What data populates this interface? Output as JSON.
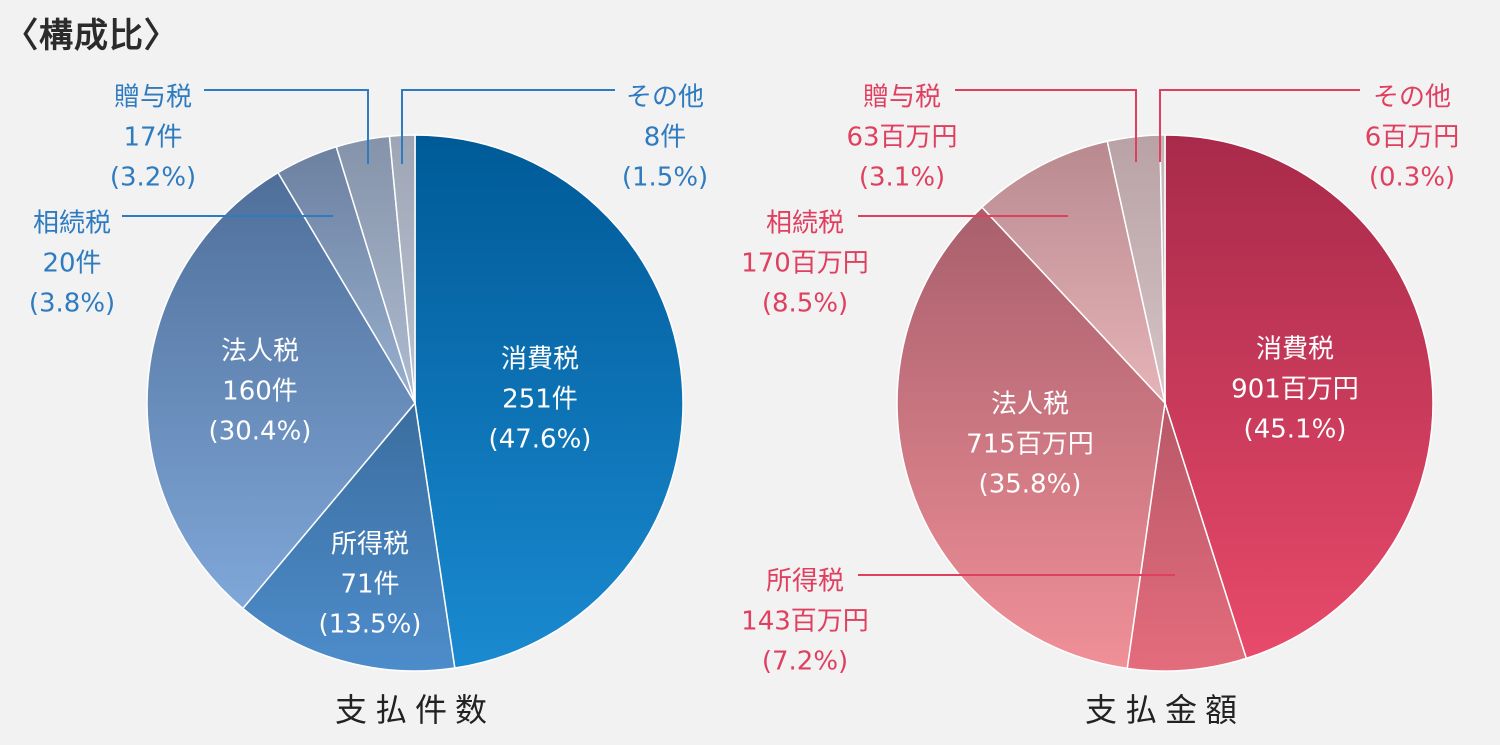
{
  "page_title": "〈構成比〉",
  "colors": {
    "count_label": "#2e7bc0",
    "count_line": "#2e7bc0",
    "amount_label": "#e0405f",
    "amount_line": "#e0405f"
  },
  "chart_data": [
    {
      "type": "pie",
      "title": "支払件数",
      "unit": "件",
      "start": "12 o'clock",
      "direction": "clockwise",
      "slices": [
        {
          "name": "消費税",
          "value": 251,
          "value_text": "251件",
          "percent": 47.6,
          "percent_text": "(47.6%)",
          "color_top": "#005a98",
          "color_bottom": "#1a8ad0"
        },
        {
          "name": "所得税",
          "value": 71,
          "value_text": "71件",
          "percent": 13.5,
          "percent_text": "(13.5%)",
          "color_top": "#3b6e9f",
          "color_bottom": "#4d8ccb"
        },
        {
          "name": "法人税",
          "value": 160,
          "value_text": "160件",
          "percent": 30.4,
          "percent_text": "(30.4%)",
          "color_top": "#4f6f9a",
          "color_bottom": "#7fa7d8"
        },
        {
          "name": "相続税",
          "value": 20,
          "value_text": "20件",
          "percent": 3.8,
          "percent_text": "(3.8%)",
          "color_top": "#6c80a0",
          "color_bottom": "#98b0cf"
        },
        {
          "name": "贈与税",
          "value": 17,
          "value_text": "17件",
          "percent": 3.2,
          "percent_text": "(3.2%)",
          "color_top": "#8593aa",
          "color_bottom": "#aebbd0"
        },
        {
          "name": "その他",
          "value": 8,
          "value_text": "8件",
          "percent": 1.5,
          "percent_text": "(1.5%)",
          "color_top": "#9ea6b6",
          "color_bottom": "#bcc3d0"
        }
      ]
    },
    {
      "type": "pie",
      "title": "支払金額",
      "unit": "百万円",
      "start": "12 o'clock",
      "direction": "clockwise",
      "slices": [
        {
          "name": "消費税",
          "value": 901,
          "value_text": "901百万円",
          "percent": 45.1,
          "percent_text": "(45.1%)",
          "color_top": "#a82a4a",
          "color_bottom": "#e84a6a"
        },
        {
          "name": "所得税",
          "value": 143,
          "value_text": "143百万円",
          "percent": 7.2,
          "percent_text": "(7.2%)",
          "color_top": "#b85868",
          "color_bottom": "#e46c7c"
        },
        {
          "name": "法人税",
          "value": 715,
          "value_text": "715百万円",
          "percent": 35.8,
          "percent_text": "(35.8%)",
          "color_top": "#a85f6c",
          "color_bottom": "#f09098"
        },
        {
          "name": "相続税",
          "value": 170,
          "value_text": "170百万円",
          "percent": 8.5,
          "percent_text": "(8.5%)",
          "color_top": "#b88a90",
          "color_bottom": "#e6b4b8"
        },
        {
          "name": "贈与税",
          "value": 63,
          "value_text": "63百万円",
          "percent": 3.1,
          "percent_text": "(3.1%)",
          "color_top": "#b8a2a6",
          "color_bottom": "#d6c4c6"
        },
        {
          "name": "その他",
          "value": 6,
          "value_text": "6百万円",
          "percent": 0.3,
          "percent_text": "(0.3%)",
          "color_top": "#c2b4b6",
          "color_bottom": "#d8cccd"
        }
      ]
    }
  ]
}
